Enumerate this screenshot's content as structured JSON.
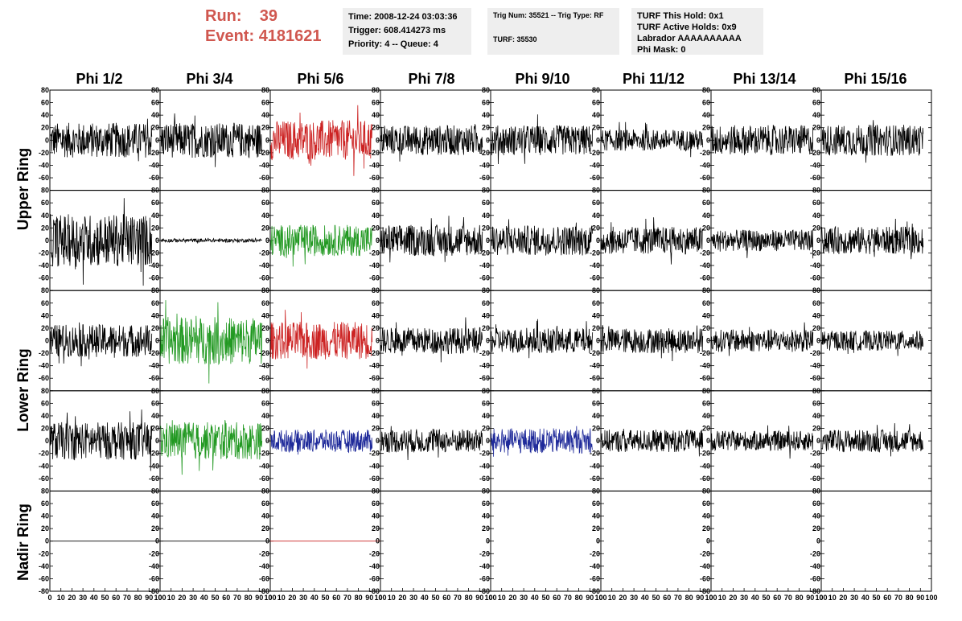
{
  "run_label": "Run:",
  "run_value": "39",
  "event_label": "Event:",
  "event_value": "4181621",
  "info_box_1": [
    "Time: 2008-12-24 03:03:36",
    "Trigger: 608.414273 ms",
    "Priority: 4 -- Queue: 4"
  ],
  "info_box_2": [
    "Trig Num: 35521 -- Trig Type: RF",
    "TURF: 35530"
  ],
  "info_box_3": [
    "TURF This Hold: 0x1",
    "TURF Active Holds: 0x9",
    "Labrador AAAAAAAAAA",
    "Phi Mask: 0"
  ],
  "columns": [
    "Phi 1/2",
    "Phi 3/4",
    "Phi 5/6",
    "Phi 7/8",
    "Phi 9/10",
    "Phi 11/12",
    "Phi 13/14",
    "Phi 15/16"
  ],
  "ring_labels": [
    "Upper Ring",
    "Lower Ring",
    "Nadir Ring"
  ],
  "colors": {
    "red": "#cc2222",
    "green": "#229922",
    "blue": "#1f2a9a",
    "black": "#000000",
    "run_text": "#d0574f",
    "info_bg": "#eeeeee"
  },
  "chart_data": {
    "type": "line",
    "description_rows": [
      "upper-1",
      "upper-2",
      "lower-1",
      "lower-2",
      "nadir"
    ],
    "x_range": [
      0,
      100
    ],
    "y_range": [
      -80,
      80
    ],
    "y_ticks": [
      -80,
      -60,
      -40,
      -20,
      0,
      20,
      40,
      60,
      80
    ],
    "x_ticks": [
      0,
      10,
      20,
      30,
      40,
      50,
      60,
      70,
      80,
      90,
      100
    ],
    "trace_colors": [
      [
        "black",
        "black",
        "red",
        "black",
        "black",
        "black",
        "black",
        "black"
      ],
      [
        "black",
        "black",
        "green",
        "black",
        "black",
        "black",
        "black",
        "black"
      ],
      [
        "black",
        "green",
        "red",
        "black",
        "black",
        "black",
        "black",
        "black"
      ],
      [
        "black",
        "green",
        "blue",
        "black",
        "blue",
        "black",
        "black",
        "black"
      ],
      [
        "black",
        "black",
        "red",
        "none",
        "none",
        "none",
        "none",
        "none"
      ]
    ],
    "trace_amplitude": [
      [
        28,
        28,
        32,
        24,
        24,
        17,
        24,
        25
      ],
      [
        42,
        3,
        25,
        25,
        24,
        22,
        17,
        22
      ],
      [
        26,
        38,
        30,
        21,
        20,
        20,
        18,
        16
      ],
      [
        30,
        30,
        18,
        19,
        20,
        18,
        16,
        18
      ],
      [
        0,
        0,
        0,
        0,
        0,
        0,
        0,
        0
      ]
    ]
  }
}
